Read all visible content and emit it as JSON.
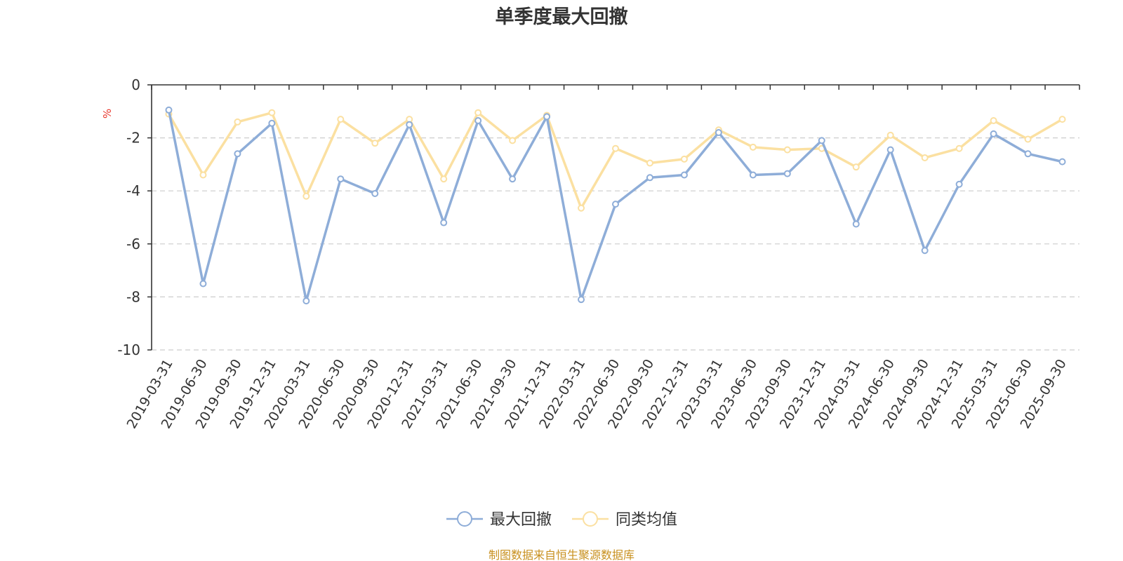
{
  "chart_data": {
    "type": "line",
    "title": "单季度最大回撤",
    "ylabel": "%",
    "ylim": [
      -10,
      0
    ],
    "yticks": [
      "0",
      "-2",
      "-4",
      "-6",
      "-8",
      "-10"
    ],
    "grid": true,
    "legend_position": "bottom",
    "categories": [
      "2019-03-31",
      "2019-06-30",
      "2019-09-30",
      "2019-12-31",
      "2020-03-31",
      "2020-06-30",
      "2020-09-30",
      "2020-12-31",
      "2021-03-31",
      "2021-06-30",
      "2021-09-30",
      "2021-12-31",
      "2022-03-31",
      "2022-06-30",
      "2022-09-30",
      "2022-12-31",
      "2023-03-31",
      "2023-06-30",
      "2023-09-30",
      "2023-12-31",
      "2024-03-31",
      "2024-06-30",
      "2024-09-30",
      "2024-12-31",
      "2025-03-31",
      "2025-06-30",
      "2025-09-30"
    ],
    "series": [
      {
        "name": "最大回撤",
        "color": "#8eadd8",
        "values": [
          -0.95,
          -7.5,
          -2.6,
          -1.45,
          -8.15,
          -3.55,
          -4.1,
          -1.5,
          -5.2,
          -1.35,
          -3.55,
          -1.2,
          -8.1,
          -4.5,
          -3.5,
          -3.4,
          -1.8,
          -3.4,
          -3.35,
          -2.1,
          -5.25,
          -2.45,
          -6.25,
          -3.75,
          -1.85,
          -2.6,
          -2.9
        ]
      },
      {
        "name": "同类均值",
        "color": "#fbe0a1",
        "values": [
          -1.1,
          -3.4,
          -1.4,
          -1.05,
          -4.2,
          -1.3,
          -2.2,
          -1.3,
          -3.55,
          -1.05,
          -2.1,
          -1.15,
          -4.65,
          -2.4,
          -2.95,
          -2.8,
          -1.7,
          -2.35,
          -2.45,
          -2.4,
          -3.1,
          -1.9,
          -2.75,
          -2.4,
          -1.35,
          -2.05,
          -1.3
        ]
      }
    ]
  },
  "source_text": "制图数据来自恒生聚源数据库"
}
